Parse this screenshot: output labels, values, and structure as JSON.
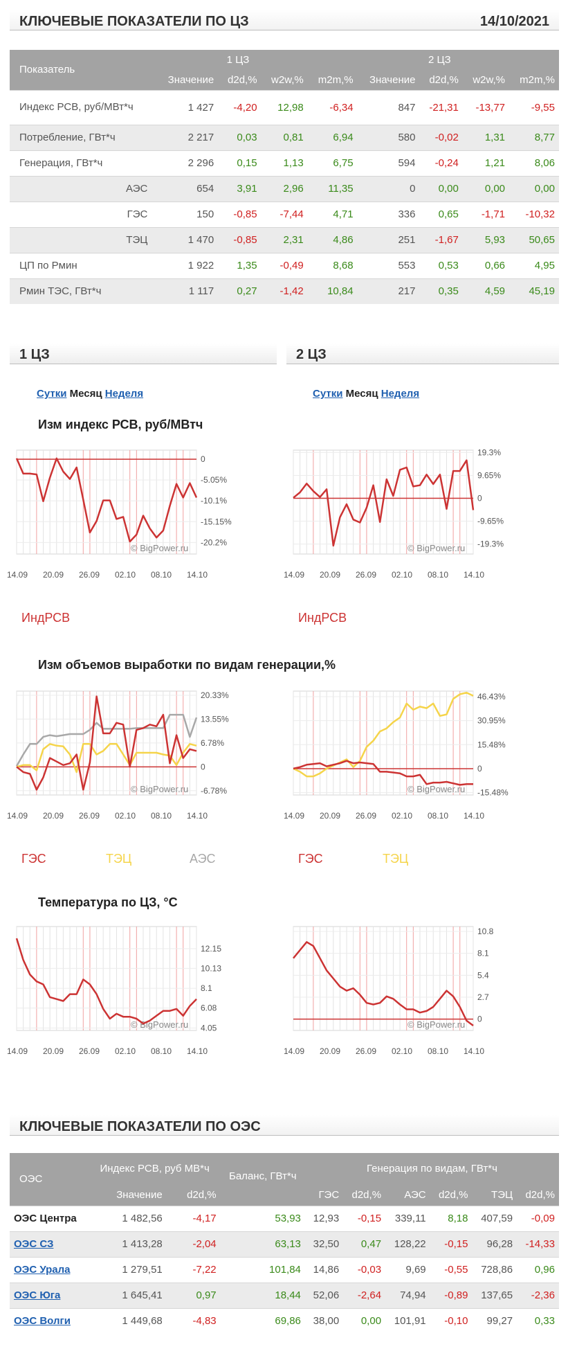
{
  "header1": {
    "title": "КЛЮЧЕВЫЕ ПОКАЗАТЕЛИ ПО ЦЗ",
    "date": "14/10/2021"
  },
  "kt": {
    "col_label": "Показатель",
    "zone1": "1 ЦЗ",
    "zone2": "2 ЦЗ",
    "cols": [
      "Значение",
      "d2d,%",
      "w2w,%",
      "m2m,%",
      "Значение",
      "d2d,%",
      "w2w,%",
      "m2m,%"
    ],
    "rows": [
      {
        "label": "Индекс РСВ, руб/МВт*ч",
        "sub": false,
        "vals": [
          "1 427",
          "-4,20",
          "12,98",
          "-6,34",
          "847",
          "-21,31",
          "-13,77",
          "-9,55"
        ]
      },
      {
        "label": "Потребление, ГВт*ч",
        "sub": false,
        "vals": [
          "2 217",
          "0,03",
          "0,81",
          "6,94",
          "580",
          "-0,02",
          "1,31",
          "8,77"
        ]
      },
      {
        "label": "Генерация, ГВт*ч",
        "sub": false,
        "vals": [
          "2 296",
          "0,15",
          "1,13",
          "6,75",
          "594",
          "-0,24",
          "1,21",
          "8,06"
        ]
      },
      {
        "label": "АЭС",
        "sub": true,
        "vals": [
          "654",
          "3,91",
          "2,96",
          "11,35",
          "0",
          "0,00",
          "0,00",
          "0,00"
        ]
      },
      {
        "label": "ГЭС",
        "sub": true,
        "vals": [
          "150",
          "-0,85",
          "-7,44",
          "4,71",
          "336",
          "0,65",
          "-1,71",
          "-10,32"
        ]
      },
      {
        "label": "ТЭЦ",
        "sub": true,
        "vals": [
          "1 470",
          "-0,85",
          "2,31",
          "4,86",
          "251",
          "-1,67",
          "5,93",
          "50,65"
        ]
      },
      {
        "label": "ЦП по Рмин",
        "sub": false,
        "vals": [
          "1 922",
          "1,35",
          "-0,49",
          "8,68",
          "553",
          "0,53",
          "0,66",
          "4,95"
        ]
      },
      {
        "label": "Рмин ТЭС, ГВт*ч",
        "sub": false,
        "vals": [
          "1 117",
          "0,27",
          "-1,42",
          "10,84",
          "217",
          "0,35",
          "4,59",
          "45,19"
        ]
      }
    ]
  },
  "sections": {
    "z1": "1 ЦЗ",
    "z2": "2 ЦЗ"
  },
  "periods": {
    "day": "Сутки",
    "month": "Месяц",
    "week": "Неделя"
  },
  "titles": {
    "rsv": "Изм индекс РСВ, руб/МВтч",
    "gen": "Изм объемов выработки по видам генерации,%",
    "temp": "Температура по ЦЗ, °С"
  },
  "watermark": "© BigPower.ru",
  "xticks": [
    "14.09",
    "20.09",
    "26.09",
    "02.10",
    "08.10",
    "14.10"
  ],
  "legends": {
    "rsv": [
      "ИндРСВ"
    ],
    "gen1": [
      "ГЭС",
      "ТЭЦ",
      "АЭС"
    ],
    "gen2": [
      "ГЭС",
      "ТЭЦ"
    ]
  },
  "colors": {
    "red": "#cc3333",
    "yellow": "#f5d44a",
    "gray": "#a8a8a8",
    "grid": "#e3e3e3",
    "redgrid": "#f0a0a0"
  },
  "chart_data": [
    {
      "type": "line",
      "zone": "1 ЦЗ",
      "metric": "rsv",
      "ylim": [
        -23.0,
        2.2
      ],
      "yticks": [
        "0",
        "-5.05%",
        "-10.1%",
        "-15.15%",
        "-20.2%"
      ],
      "series": [
        {
          "name": "ИндРСВ",
          "color": "red",
          "values": [
            0.2,
            -3.5,
            -3.5,
            -3.7,
            -10.2,
            -4.5,
            0.2,
            -3.0,
            -4.8,
            -2.0,
            -9.8,
            -17.8,
            -15.0,
            -10.0,
            -10.0,
            -14.5,
            -14.0,
            -20.0,
            -18.3,
            -13.7,
            -16.8,
            -19.0,
            -17.3,
            -11.3,
            -6.0,
            -9.3,
            -5.8,
            -9.3
          ]
        }
      ]
    },
    {
      "type": "line",
      "zone": "2 ЦЗ",
      "metric": "rsv",
      "ylim": [
        -23.5,
        20.3
      ],
      "yticks": [
        "19.3%",
        "9.65%",
        "0",
        "-9.65%",
        "-19.3%"
      ],
      "series": [
        {
          "name": "ИндРСВ",
          "color": "red",
          "values": [
            0.2,
            2.5,
            6.2,
            3.0,
            0.5,
            3.8,
            -20.0,
            -8.0,
            -2.5,
            -9.0,
            -10.2,
            -4.0,
            5.5,
            -10.0,
            8.0,
            1.0,
            12.0,
            13.0,
            5.0,
            5.5,
            10.0,
            6.0,
            10.0,
            -4.5,
            11.5,
            11.5,
            16.0,
            -5.0
          ]
        }
      ]
    },
    {
      "type": "line",
      "zone": "1 ЦЗ",
      "metric": "gen",
      "ylim": [
        -8.0,
        21.5
      ],
      "yticks": [
        "20.33%",
        "13.55%",
        "6.78%",
        "0",
        "-6.78%"
      ],
      "series": [
        {
          "name": "АЭС",
          "color": "gray",
          "values": [
            0.2,
            3.5,
            6.5,
            6.5,
            8.5,
            9.0,
            8.7,
            9.0,
            9.3,
            9.3,
            9.3,
            10.5,
            12.5,
            10.8,
            10.8,
            10.8,
            10.8,
            10.8,
            11.0,
            11.0,
            11.0,
            11.0,
            11.0,
            14.8,
            14.8,
            14.8,
            8.5,
            14.0
          ]
        },
        {
          "name": "ТЭЦ",
          "color": "yellow",
          "values": [
            0.0,
            0.5,
            0.5,
            -1.0,
            5.0,
            6.5,
            6.0,
            5.8,
            3.5,
            -1.5,
            6.5,
            6.5,
            3.5,
            4.5,
            6.5,
            6.5,
            3.5,
            0.5,
            4.0,
            4.0,
            4.0,
            4.0,
            3.5,
            3.2,
            0.5,
            4.0,
            6.5,
            6.0
          ]
        },
        {
          "name": "ГЭС",
          "color": "red",
          "values": [
            0.0,
            -1.5,
            -2.0,
            -6.5,
            -3.0,
            2.5,
            1.5,
            0.5,
            1.0,
            3.5,
            -6.5,
            1.2,
            20.0,
            9.5,
            9.5,
            12.5,
            12.0,
            0.0,
            10.5,
            11.0,
            12.0,
            11.5,
            14.8,
            1.0,
            9.0,
            2.5,
            5.0,
            4.5
          ]
        }
      ]
    },
    {
      "type": "line",
      "zone": "2 ЦЗ",
      "metric": "gen",
      "ylim": [
        -17.0,
        50.0
      ],
      "yticks": [
        "46.43%",
        "30.95%",
        "15.48%",
        "0",
        "-15.48%"
      ],
      "series": [
        {
          "name": "ТЭЦ",
          "color": "yellow",
          "values": [
            0.0,
            -2.0,
            -5.0,
            -5.0,
            -3.0,
            0.0,
            2.0,
            4.0,
            6.0,
            1.0,
            5.0,
            14.0,
            18.0,
            24.0,
            26.0,
            30.0,
            33.0,
            42.0,
            38.0,
            40.0,
            39.0,
            42.0,
            34.0,
            35.0,
            45.0,
            48.0,
            49.0,
            47.0
          ]
        },
        {
          "name": "ГЭС",
          "color": "red",
          "values": [
            0.0,
            1.0,
            2.5,
            3.0,
            3.5,
            1.5,
            2.5,
            3.5,
            5.0,
            3.5,
            4.0,
            3.5,
            3.0,
            -2.0,
            -2.0,
            -2.5,
            -3.0,
            -5.0,
            -5.0,
            -4.0,
            -10.0,
            -9.0,
            -9.0,
            -8.5,
            -9.5,
            -10.5,
            -10.0,
            -10.0
          ]
        }
      ]
    },
    {
      "type": "line",
      "zone": "1 ЦЗ",
      "metric": "temp",
      "ylim": [
        3.8,
        14.4
      ],
      "yticks": [
        "12.15",
        "10.13",
        "8.1",
        "6.08",
        "4.05"
      ],
      "series": [
        {
          "name": "Температура",
          "color": "red",
          "values": [
            13.2,
            11.0,
            9.5,
            8.8,
            8.5,
            7.2,
            7.0,
            6.8,
            7.5,
            7.5,
            9.0,
            8.5,
            7.5,
            6.0,
            5.0,
            5.5,
            5.2,
            5.2,
            5.0,
            4.5,
            4.8,
            5.3,
            5.8,
            5.8,
            6.0,
            5.3,
            6.3,
            7.0
          ]
        }
      ]
    },
    {
      "type": "line",
      "zone": "2 ЦЗ",
      "metric": "temp",
      "ylim": [
        -1.4,
        11.4
      ],
      "yticks": [
        "10.8",
        "8.1",
        "5.4",
        "2.7",
        "0"
      ],
      "series": [
        {
          "name": "Температура",
          "color": "red",
          "values": [
            7.5,
            8.5,
            9.5,
            9.0,
            7.5,
            6.0,
            5.0,
            4.0,
            3.5,
            3.8,
            3.0,
            2.0,
            1.8,
            2.0,
            2.8,
            2.5,
            1.8,
            1.2,
            1.2,
            0.8,
            1.0,
            1.5,
            2.5,
            3.5,
            2.8,
            1.5,
            -0.2,
            -0.8
          ]
        }
      ]
    }
  ],
  "oes": {
    "h_oes": "ОЭС",
    "h_rsv": "Индекс РСВ, руб МВ*ч",
    "h_balance": "Баланс, ГВт*ч",
    "h_gen": "Генерация по видам, ГВт*ч",
    "cols": [
      "Значение",
      "d2d,%",
      "ГЭС",
      "d2d,%",
      "АЭС",
      "d2d,%",
      "ТЭЦ",
      "d2d,%"
    ],
    "rows": [
      {
        "name": "ОЭС Центра",
        "link": false,
        "vals": [
          "1 482,56",
          "-4,17",
          "53,93",
          "12,93",
          "-0,15",
          "339,11",
          "8,18",
          "407,59",
          "-0,09"
        ]
      },
      {
        "name": "ОЭС СЗ",
        "link": true,
        "vals": [
          "1 413,28",
          "-2,04",
          "63,13",
          "32,50",
          "0,47",
          "128,22",
          "-0,15",
          "96,28",
          "-14,33"
        ]
      },
      {
        "name": "ОЭС Урала",
        "link": true,
        "vals": [
          "1 279,51",
          "-7,22",
          "101,84",
          "14,86",
          "-0,03",
          "9,69",
          "-0,55",
          "728,86",
          "0,96"
        ]
      },
      {
        "name": "ОЭС Юга",
        "link": true,
        "vals": [
          "1 645,41",
          "0,97",
          "18,44",
          "52,06",
          "-2,64",
          "74,94",
          "-0,89",
          "137,65",
          "-2,36"
        ]
      },
      {
        "name": "ОЭС Волги",
        "link": true,
        "vals": [
          "1 449,68",
          "-4,83",
          "69,86",
          "38,00",
          "0,00",
          "101,91",
          "-0,10",
          "99,27",
          "0,33"
        ]
      }
    ]
  },
  "header2": {
    "title": "КЛЮЧЕВЫЕ ПОКАЗАТЕЛИ ПО ОЭС"
  }
}
